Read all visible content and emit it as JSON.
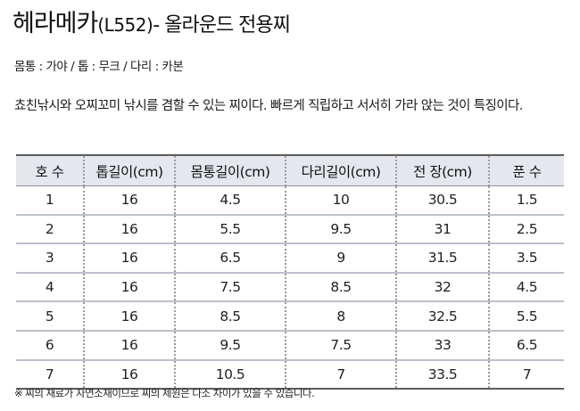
{
  "title": {
    "name": "헤라메카",
    "model": "(L552)",
    "subtitle": "- 올라운드 전용찌"
  },
  "materials": "몸통 : 가야 / 톱 : 무크 / 다리 : 카본",
  "description": "쵸친낚시와 오찌꼬미 낚시를 겸할 수 있는 찌이다. 빠르게 직립하고 서서히 가라 앉는 것이 특징이다.",
  "table": {
    "headers": [
      "호 수",
      "톱길이(cm)",
      "몸통길이(cm)",
      "다리길이(cm)",
      "전 장(cm)",
      "푼 수"
    ],
    "rows": [
      [
        "1",
        "16",
        "4.5",
        "10",
        "30.5",
        "1.5"
      ],
      [
        "2",
        "16",
        "5.5",
        "9.5",
        "31",
        "2.5"
      ],
      [
        "3",
        "16",
        "6.5",
        "9",
        "31.5",
        "3.5"
      ],
      [
        "4",
        "16",
        "7.5",
        "8.5",
        "32",
        "4.5"
      ],
      [
        "5",
        "16",
        "8.5",
        "8",
        "32.5",
        "5.5"
      ],
      [
        "6",
        "16",
        "9.5",
        "7.5",
        "33",
        "6.5"
      ],
      [
        "7",
        "16",
        "10.5",
        "7",
        "33.5",
        "7"
      ]
    ]
  },
  "note": "※ 찌의 재료가 자연소재이므로 찌의 제원은 다소 차이가 있을 수 있습니다."
}
